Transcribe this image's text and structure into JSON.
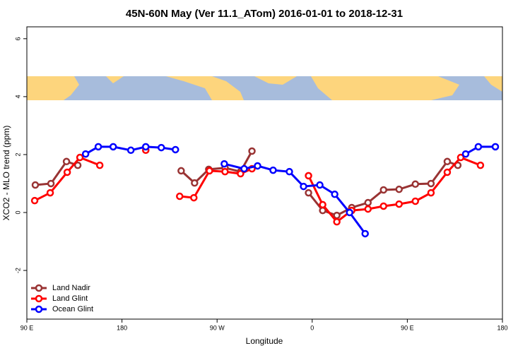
{
  "chart_data": {
    "type": "line",
    "title": "45N-60N May (Ver 11.1_ATom)   2016-01-01 to 2018-12-31",
    "x_label": "Longitude",
    "y_label": "XCO2 - MLO trend (ppm)",
    "xlim": [
      90,
      540
    ],
    "xticks": [
      {
        "value": 90,
        "label": "90 E"
      },
      {
        "value": 180,
        "label": "180"
      },
      {
        "value": 270,
        "label": "90 W"
      },
      {
        "value": 360,
        "label": "0"
      },
      {
        "value": 450,
        "label": "90 E"
      },
      {
        "value": 540,
        "label": "180"
      }
    ],
    "ylim": [
      -3.68,
      6.41
    ],
    "yticks": [
      -2,
      0,
      2,
      4,
      6
    ],
    "legend": "bottom-left",
    "series": [
      {
        "name": "Land Nadir",
        "color": "#993333",
        "x": [
          98.0,
          112.8,
          127.5,
          138.2,
          187,
          236.0,
          248.7,
          262.1,
          277.5,
          292.2,
          303.0,
          330,
          356.5,
          369.9,
          383.3,
          397.4,
          412.8,
          427.5,
          442.2,
          457.6,
          472.4,
          487.8,
          497.8
        ],
        "values": [
          0.95,
          1.0,
          1.76,
          1.63,
          null,
          1.44,
          1.02,
          1.49,
          1.54,
          1.41,
          2.12,
          null,
          0.68,
          0.07,
          -0.1,
          0.17,
          0.34,
          0.78,
          0.8,
          0.98,
          1.0,
          1.76,
          1.63
        ]
      },
      {
        "name": "Land Glint",
        "color": "#ff0000",
        "x": [
          97.4,
          112.1,
          128.2,
          140.2,
          159.0,
          181.7,
          202.5,
          218.6,
          234.6,
          248.0,
          262.8,
          277.5,
          292.2,
          303.0,
          330,
          356.5,
          369.9,
          383.3,
          397.4,
          412.8,
          427.5,
          442.2,
          457.6,
          472.4,
          487.8,
          500.5,
          519.2
        ],
        "values": [
          0.41,
          0.68,
          1.39,
          1.9,
          1.63,
          null,
          2.15,
          null,
          0.56,
          0.51,
          1.44,
          1.41,
          1.34,
          1.51,
          null,
          1.27,
          0.27,
          -0.32,
          0.07,
          0.12,
          0.22,
          0.29,
          0.39,
          0.68,
          1.39,
          1.9,
          1.63
        ]
      },
      {
        "name": "Ocean Glint",
        "color": "#0000ff",
        "x": [
          145.6,
          157.6,
          171.7,
          188.4,
          202.5,
          217.2,
          230.6,
          253.4,
          276.8,
          295.6,
          308.3,
          323.0,
          338.4,
          351.8,
          367.2,
          381.3,
          395.4,
          410.1,
          457.6,
          505.2,
          517.2,
          533.3
        ],
        "values": [
          2.02,
          2.27,
          2.27,
          2.15,
          2.27,
          2.24,
          2.17,
          null,
          1.68,
          1.51,
          1.61,
          1.46,
          1.41,
          0.9,
          0.95,
          0.63,
          0,
          -0.73,
          null,
          2.02,
          2.27,
          2.27
        ]
      }
    ]
  }
}
